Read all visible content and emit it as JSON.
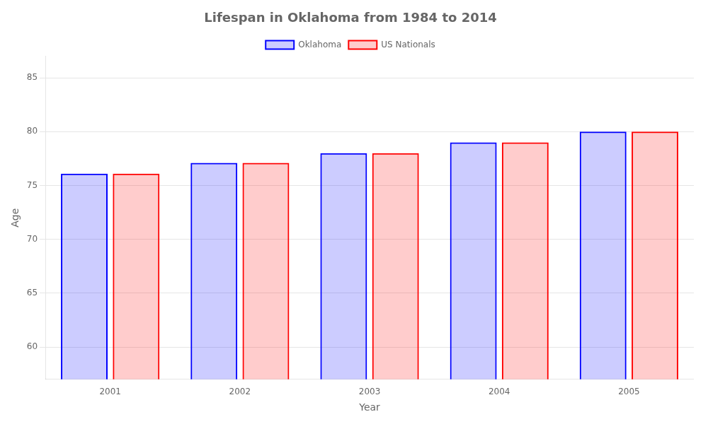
{
  "chart_data": {
    "type": "bar",
    "title": "Lifespan in Oklahoma from 1984 to 2014",
    "xlabel": "Year",
    "ylabel": "Age",
    "categories": [
      "2001",
      "2002",
      "2003",
      "2004",
      "2005"
    ],
    "series": [
      {
        "name": "Oklahoma",
        "color": "#0000ff",
        "values": [
          76.1,
          77.1,
          78.0,
          79.0,
          80.0
        ]
      },
      {
        "name": "US Nationals",
        "color": "#ff0000",
        "values": [
          76.1,
          77.1,
          78.0,
          79.0,
          80.0
        ]
      }
    ],
    "ylim": [
      57,
      87
    ],
    "yticks": [
      60,
      65,
      70,
      75,
      80,
      85
    ],
    "grid": true,
    "legend": "top"
  }
}
